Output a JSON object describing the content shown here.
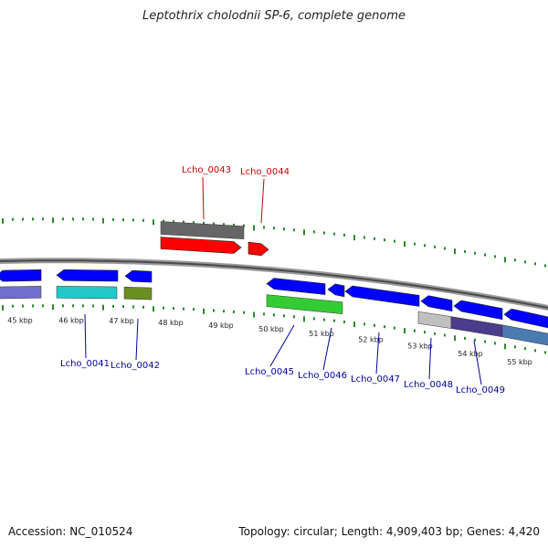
{
  "title": "Leptothrix cholodnii SP-6, complete genome",
  "footer": {
    "accession": "Accession: NC_010524",
    "summary": "Topology: circular; Length: 4,909,403 bp; Genes: 4,420"
  },
  "colors": {
    "tick": "#2a8a2a",
    "backbone": "#7a7a7a",
    "forward_label": "#cc0000",
    "reverse_label": "#000099"
  },
  "kbp_labels": [
    "45 kbp",
    "46 kbp",
    "47 kbp",
    "48 kbp",
    "49 kbp",
    "50 kbp",
    "51 kbp",
    "52 kbp",
    "53 kbp",
    "54 kbp",
    "55 kbp"
  ],
  "genes_forward": [
    {
      "label": "Lcho_0043",
      "color": "#ff0000",
      "gc_color": "#666666"
    },
    {
      "label": "Lcho_0044",
      "color": "#ff0000"
    }
  ],
  "genes_reverse": [
    {
      "label": "",
      "color": "#0000ff",
      "gc_color": "#6f6fcc"
    },
    {
      "label": "Lcho_0041",
      "color": "#0000ff",
      "gc_color": "#22c8c8"
    },
    {
      "label": "Lcho_0042",
      "color": "#0000ff",
      "gc_color": "#6b8e23"
    },
    {
      "label": "Lcho_0045",
      "color": "#0000ff",
      "gc_color": "#33cc33"
    },
    {
      "label": "Lcho_0046",
      "color": "#0000ff"
    },
    {
      "label": "Lcho_0047",
      "color": "#0000ff"
    },
    {
      "label": "Lcho_0048",
      "color": "#0000ff",
      "gc_color": "#c0c0c0"
    },
    {
      "label": "Lcho_0049",
      "color": "#0000ff",
      "gc_color": "#4b3c8c"
    },
    {
      "label": "",
      "color": "#0000ff",
      "gc_color": "#4a7bb0"
    }
  ]
}
